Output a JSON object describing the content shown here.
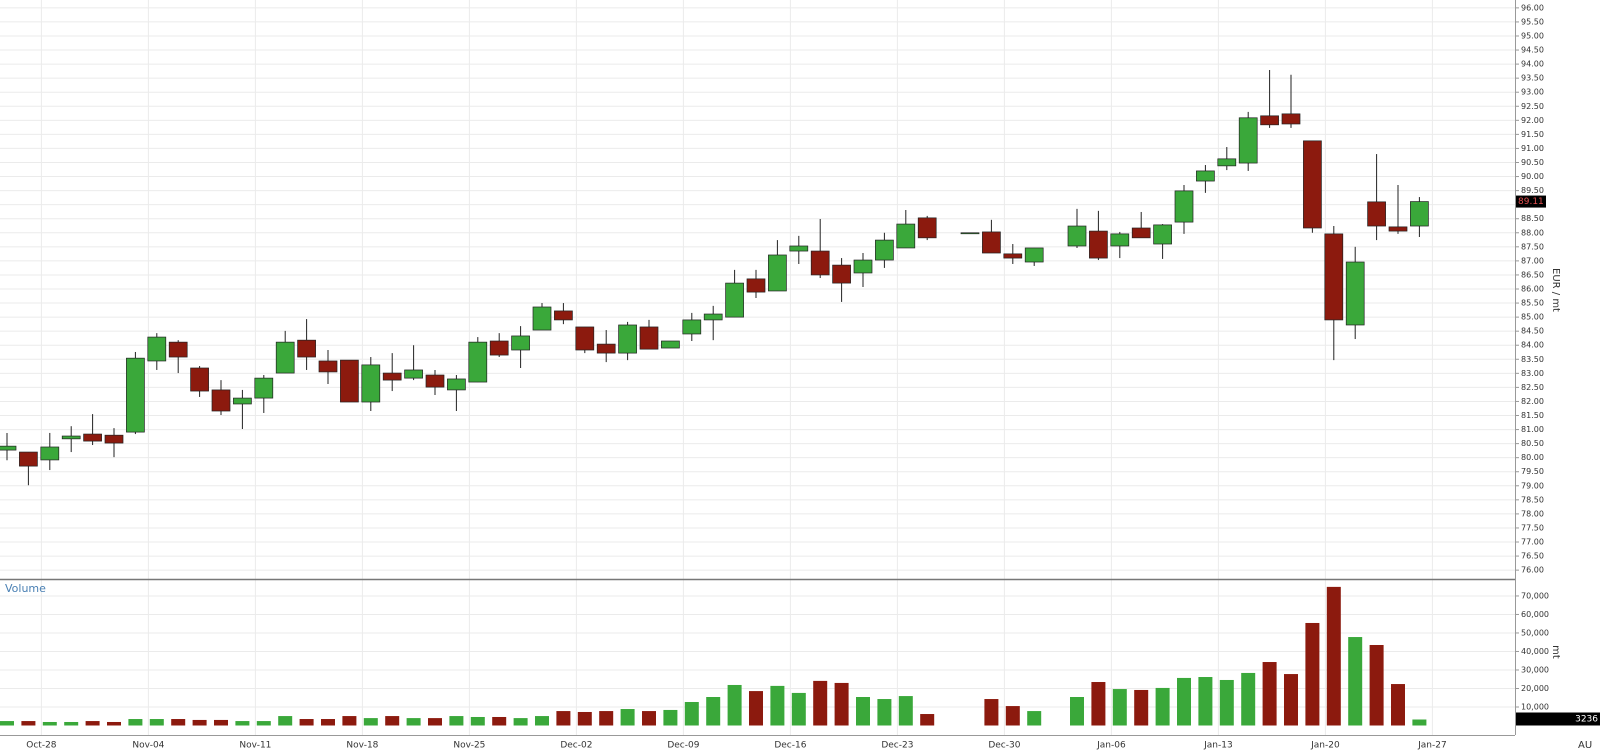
{
  "chart_data": [
    {
      "type": "candlestick",
      "y_label": "EUR / mt",
      "categories": [
        null,
        "Oct-28",
        null,
        null,
        null,
        null,
        "Nov-04",
        null,
        null,
        null,
        null,
        "Nov-11",
        null,
        null,
        null,
        null,
        "Nov-18",
        null,
        null,
        null,
        null,
        "Nov-25",
        null,
        null,
        null,
        null,
        "Dec-02",
        null,
        null,
        null,
        null,
        "Dec-09",
        null,
        null,
        null,
        null,
        "Dec-16",
        null,
        null,
        null,
        null,
        "Dec-23",
        null,
        null,
        null,
        null,
        "Dec-30",
        null,
        null,
        null,
        null,
        "Jan-06",
        null,
        null,
        null,
        null,
        "Jan-13",
        null,
        null,
        null,
        null,
        "Jan-20",
        null,
        null,
        null,
        null,
        "Jan-27"
      ],
      "open": [
        80.27,
        80.2,
        79.92,
        80.67,
        80.84,
        80.8,
        80.91,
        83.44,
        84.11,
        83.19,
        82.41,
        81.91,
        82.12,
        83.01,
        84.18,
        83.44,
        83.47,
        81.98,
        83.01,
        82.83,
        82.94,
        82.41,
        82.69,
        84.15,
        83.83,
        84.54,
        85.22,
        84.65,
        84.04,
        83.72,
        84.65,
        83.9,
        84.4,
        84.9,
        85.0,
        86.36,
        85.93,
        87.35,
        87.35,
        86.85,
        86.57,
        87.03,
        87.46,
        88.53,
        null,
        88.0,
        88.03,
        87.25,
        86.96,
        null,
        87.53,
        88.06,
        87.53,
        88.17,
        87.6,
        88.38,
        89.84,
        90.38,
        90.48,
        92.16,
        92.23,
        91.27,
        87.96,
        84.72,
        89.1,
        88.21,
        88.24
      ],
      "high": [
        80.88,
        80.2,
        80.88,
        81.12,
        81.55,
        81.05,
        83.76,
        84.43,
        84.18,
        83.26,
        82.76,
        82.41,
        82.94,
        84.51,
        84.93,
        83.83,
        83.47,
        83.58,
        83.72,
        84.0,
        83.12,
        82.94,
        84.29,
        84.43,
        84.68,
        85.5,
        85.5,
        84.65,
        84.54,
        84.83,
        84.9,
        84.15,
        85.15,
        85.4,
        86.68,
        86.68,
        87.74,
        87.89,
        88.49,
        87.1,
        87.28,
        88.0,
        88.81,
        88.6,
        null,
        88.0,
        88.46,
        87.6,
        87.46,
        null,
        88.85,
        88.78,
        88.03,
        88.74,
        88.31,
        89.7,
        90.41,
        91.05,
        92.3,
        93.79,
        93.62,
        91.27,
        88.24,
        87.5,
        90.8,
        89.7,
        89.27
      ],
      "low": [
        79.91,
        79.02,
        79.56,
        80.2,
        80.45,
        80.02,
        80.84,
        83.12,
        83.01,
        82.16,
        81.52,
        81.02,
        81.59,
        83.01,
        83.12,
        82.62,
        81.98,
        81.66,
        82.37,
        82.76,
        82.23,
        81.66,
        82.69,
        83.58,
        83.19,
        84.54,
        84.75,
        83.72,
        83.4,
        83.47,
        83.86,
        83.9,
        84.15,
        84.18,
        85.0,
        85.68,
        85.93,
        86.89,
        86.39,
        85.54,
        86.07,
        86.75,
        87.46,
        87.74,
        null,
        88.0,
        87.28,
        86.89,
        86.82,
        null,
        87.46,
        87.03,
        87.1,
        87.82,
        87.07,
        87.96,
        89.42,
        90.23,
        90.2,
        91.73,
        91.73,
        88.0,
        83.47,
        84.22,
        87.74,
        87.96,
        87.85
      ],
      "close": [
        80.41,
        79.7,
        80.38,
        80.77,
        80.59,
        80.52,
        83.54,
        84.29,
        83.58,
        82.37,
        81.66,
        82.12,
        82.83,
        84.11,
        83.58,
        83.05,
        81.98,
        83.3,
        82.76,
        83.12,
        82.51,
        82.8,
        84.11,
        83.65,
        84.33,
        85.36,
        84.9,
        83.83,
        83.72,
        84.72,
        83.86,
        84.15,
        84.9,
        85.11,
        86.21,
        85.89,
        87.21,
        87.53,
        86.5,
        86.21,
        87.03,
        87.74,
        88.31,
        87.82,
        null,
        88.0,
        87.28,
        87.1,
        87.46,
        null,
        88.24,
        87.1,
        87.96,
        87.82,
        88.28,
        89.49,
        90.2,
        90.63,
        92.09,
        91.84,
        91.87,
        88.17,
        84.9,
        86.96,
        88.24,
        88.06,
        89.11
      ],
      "up_color": "#3aa83a",
      "down_color": "#8c1a0e",
      "ylim": [
        75.72,
        96.28
      ],
      "yticks": [
        {
          "value": 76,
          "label": "76.00"
        },
        {
          "value": 76.5,
          "label": "76.50"
        },
        {
          "value": 77,
          "label": "77.00"
        },
        {
          "value": 77.5,
          "label": "77.50"
        },
        {
          "value": 78,
          "label": "78.00"
        },
        {
          "value": 78.5,
          "label": "78.50"
        },
        {
          "value": 79,
          "label": "79.00"
        },
        {
          "value": 79.5,
          "label": "79.50"
        },
        {
          "value": 80,
          "label": "80.00"
        },
        {
          "value": 80.5,
          "label": "80.50"
        },
        {
          "value": 81,
          "label": "81.00"
        },
        {
          "value": 81.5,
          "label": "81.50"
        },
        {
          "value": 82,
          "label": "82.00"
        },
        {
          "value": 82.5,
          "label": "82.50"
        },
        {
          "value": 83,
          "label": "83.00"
        },
        {
          "value": 83.5,
          "label": "83.50"
        },
        {
          "value": 84,
          "label": "84.00"
        },
        {
          "value": 84.5,
          "label": "84.50"
        },
        {
          "value": 85,
          "label": "85.00"
        },
        {
          "value": 85.5,
          "label": "85.50"
        },
        {
          "value": 86,
          "label": "86.00"
        },
        {
          "value": 86.5,
          "label": "86.50"
        },
        {
          "value": 87,
          "label": "87.00"
        },
        {
          "value": 87.5,
          "label": "87.50"
        },
        {
          "value": 88,
          "label": "88.00"
        },
        {
          "value": 88.5,
          "label": "88.50"
        },
        {
          "value": 89,
          "label": "89.00"
        },
        {
          "value": 89.5,
          "label": "89.50"
        },
        {
          "value": 90,
          "label": "90.00"
        },
        {
          "value": 90.5,
          "label": "90.50"
        },
        {
          "value": 91,
          "label": "91.00"
        },
        {
          "value": 91.5,
          "label": "91.50"
        },
        {
          "value": 92,
          "label": "92.00"
        },
        {
          "value": 92.5,
          "label": "92.50"
        },
        {
          "value": 93,
          "label": "93.00"
        },
        {
          "value": 93.5,
          "label": "93.50"
        },
        {
          "value": 94,
          "label": "94.00"
        },
        {
          "value": 94.5,
          "label": "94.50"
        },
        {
          "value": 95,
          "label": "95.00"
        },
        {
          "value": 95.5,
          "label": "95.50"
        },
        {
          "value": 96,
          "label": "96.00"
        }
      ],
      "grid": true
    },
    {
      "type": "bar",
      "title": "Volume",
      "y_label": "mt",
      "values": [
        2400,
        2400,
        1900,
        1900,
        2400,
        1900,
        3500,
        3500,
        3500,
        3000,
        3000,
        2400,
        2400,
        5100,
        3500,
        3500,
        5100,
        4000,
        5100,
        4000,
        4000,
        5100,
        4600,
        4600,
        4000,
        5100,
        7800,
        7300,
        7800,
        8900,
        7800,
        8400,
        12700,
        15400,
        21900,
        18600,
        21400,
        17600,
        24100,
        23000,
        15400,
        14300,
        15900,
        6200,
        null,
        null,
        14300,
        10500,
        7800,
        null,
        15400,
        23500,
        19700,
        19200,
        20300,
        25700,
        26200,
        24600,
        28400,
        34300,
        27800,
        55400,
        74900,
        47800,
        43500,
        22400,
        3236
      ],
      "ylim": [
        0,
        77000
      ],
      "yticks": [
        {
          "value": 10000,
          "label": "10,000"
        },
        {
          "value": 20000,
          "label": "20,000"
        },
        {
          "value": 30000,
          "label": "30,000"
        },
        {
          "value": 40000,
          "label": "40,000"
        },
        {
          "value": 50000,
          "label": "50,000"
        },
        {
          "value": 60000,
          "label": "60,000"
        },
        {
          "value": 70000,
          "label": "70,000"
        }
      ],
      "grid": true
    }
  ],
  "corner_label": "AU"
}
